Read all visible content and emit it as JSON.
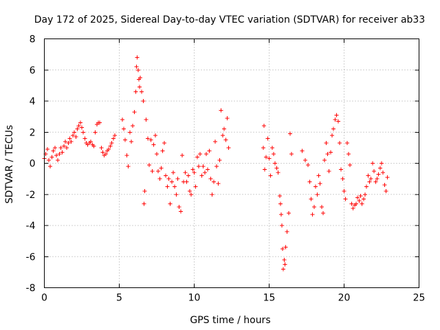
{
  "chart_data": {
    "type": "scatter",
    "title": "Day 172 of 2025, Sidereal Day-to-day VTEC variation (SDTVAR) for receiver ab33",
    "xlabel": "GPS time / hours",
    "ylabel": "SDTVAR / TECUs",
    "xlim": [
      0,
      25
    ],
    "ylim": [
      -8,
      8
    ],
    "x_ticks": [
      "0",
      "5",
      "10",
      "15",
      "20",
      "25"
    ],
    "y_ticks": [
      "-8",
      "-6",
      "-4",
      "-2",
      "0",
      "2",
      "4",
      "6",
      "8"
    ],
    "grid": true,
    "marker": "plus",
    "series_color": "#ff0000",
    "series": [
      {
        "name": "SDTVAR",
        "points": [
          [
            0.0,
            0.3
          ],
          [
            0.1,
            0.6
          ],
          [
            0.2,
            0.9
          ],
          [
            0.3,
            0.2
          ],
          [
            0.4,
            -0.2
          ],
          [
            0.5,
            0.4
          ],
          [
            0.6,
            0.8
          ],
          [
            0.7,
            1.0
          ],
          [
            0.8,
            0.5
          ],
          [
            0.9,
            0.2
          ],
          [
            1.0,
            0.6
          ],
          [
            1.1,
            1.0
          ],
          [
            1.2,
            0.7
          ],
          [
            1.3,
            1.1
          ],
          [
            1.4,
            1.4
          ],
          [
            1.5,
            1.0
          ],
          [
            1.6,
            1.3
          ],
          [
            1.7,
            1.6
          ],
          [
            1.8,
            1.4
          ],
          [
            1.9,
            1.8
          ],
          [
            2.0,
            2.0
          ],
          [
            2.1,
            1.7
          ],
          [
            2.2,
            2.2
          ],
          [
            2.3,
            2.4
          ],
          [
            2.4,
            2.6
          ],
          [
            2.5,
            2.3
          ],
          [
            2.6,
            2.0
          ],
          [
            2.7,
            1.6
          ],
          [
            2.8,
            1.3
          ],
          [
            2.9,
            1.2
          ],
          [
            3.0,
            1.3
          ],
          [
            3.1,
            1.4
          ],
          [
            3.2,
            1.2
          ],
          [
            3.3,
            1.1
          ],
          [
            3.4,
            2.0
          ],
          [
            3.5,
            2.5
          ],
          [
            3.6,
            2.6
          ],
          [
            3.7,
            2.6
          ],
          [
            3.8,
            1.0
          ],
          [
            3.9,
            0.7
          ],
          [
            4.0,
            0.5
          ],
          [
            4.1,
            0.6
          ],
          [
            4.2,
            0.8
          ],
          [
            4.3,
            0.9
          ],
          [
            4.4,
            1.1
          ],
          [
            4.5,
            1.3
          ],
          [
            4.6,
            1.6
          ],
          [
            4.7,
            1.8
          ],
          [
            5.2,
            2.8
          ],
          [
            5.3,
            2.2
          ],
          [
            5.4,
            1.5
          ],
          [
            5.5,
            0.5
          ],
          [
            5.6,
            -0.2
          ],
          [
            5.7,
            2.0
          ],
          [
            5.8,
            1.4
          ],
          [
            5.9,
            2.4
          ],
          [
            6.0,
            3.3
          ],
          [
            6.1,
            4.6
          ],
          [
            6.15,
            6.2
          ],
          [
            6.2,
            6.8
          ],
          [
            6.25,
            6.0
          ],
          [
            6.3,
            5.4
          ],
          [
            6.35,
            4.9
          ],
          [
            6.4,
            5.5
          ],
          [
            6.5,
            4.6
          ],
          [
            6.6,
            4.0
          ],
          [
            6.65,
            -2.6
          ],
          [
            6.7,
            -1.8
          ],
          [
            6.8,
            2.8
          ],
          [
            6.9,
            1.6
          ],
          [
            7.0,
            -0.1
          ],
          [
            7.1,
            1.5
          ],
          [
            7.2,
            -0.5
          ],
          [
            7.3,
            1.2
          ],
          [
            7.4,
            1.8
          ],
          [
            7.5,
            0.6
          ],
          [
            7.6,
            -0.5
          ],
          [
            7.7,
            -1.0
          ],
          [
            7.8,
            -0.3
          ],
          [
            7.9,
            0.8
          ],
          [
            8.0,
            1.3
          ],
          [
            8.1,
            -0.8
          ],
          [
            8.2,
            -1.5
          ],
          [
            8.3,
            -1.0
          ],
          [
            8.4,
            -2.6
          ],
          [
            8.5,
            -1.2
          ],
          [
            8.6,
            -0.6
          ],
          [
            8.7,
            -1.5
          ],
          [
            8.8,
            -2.0
          ],
          [
            8.9,
            -1.0
          ],
          [
            9.0,
            -2.8
          ],
          [
            9.1,
            -3.1
          ],
          [
            9.2,
            0.5
          ],
          [
            9.3,
            -1.2
          ],
          [
            9.4,
            -0.6
          ],
          [
            9.5,
            -1.2
          ],
          [
            9.6,
            -0.8
          ],
          [
            9.7,
            -1.8
          ],
          [
            9.8,
            -2.0
          ],
          [
            9.9,
            -0.4
          ],
          [
            10.0,
            -0.6
          ],
          [
            10.1,
            -1.5
          ],
          [
            10.2,
            0.4
          ],
          [
            10.3,
            -0.2
          ],
          [
            10.4,
            0.6
          ],
          [
            10.5,
            -0.8
          ],
          [
            10.6,
            -0.2
          ],
          [
            10.7,
            -0.6
          ],
          [
            10.8,
            0.6
          ],
          [
            10.9,
            -0.4
          ],
          [
            11.0,
            0.8
          ],
          [
            11.1,
            -1.0
          ],
          [
            11.2,
            -2.0
          ],
          [
            11.3,
            -1.2
          ],
          [
            11.4,
            1.4
          ],
          [
            11.5,
            -0.2
          ],
          [
            11.6,
            -1.3
          ],
          [
            11.7,
            0.2
          ],
          [
            11.8,
            3.4
          ],
          [
            11.9,
            1.8
          ],
          [
            12.0,
            2.2
          ],
          [
            12.1,
            1.5
          ],
          [
            12.2,
            2.9
          ],
          [
            12.3,
            1.0
          ],
          [
            14.6,
            1.0
          ],
          [
            14.65,
            2.4
          ],
          [
            14.7,
            -0.4
          ],
          [
            14.8,
            0.4
          ],
          [
            14.9,
            1.6
          ],
          [
            15.0,
            0.3
          ],
          [
            15.1,
            -0.8
          ],
          [
            15.2,
            1.0
          ],
          [
            15.3,
            0.6
          ],
          [
            15.4,
            0.0
          ],
          [
            15.5,
            -0.3
          ],
          [
            15.6,
            -0.6
          ],
          [
            15.7,
            -2.1
          ],
          [
            15.75,
            -2.6
          ],
          [
            15.8,
            -3.3
          ],
          [
            15.85,
            -4.0
          ],
          [
            15.9,
            -5.5
          ],
          [
            15.95,
            -6.8
          ],
          [
            16.0,
            -6.2
          ],
          [
            16.05,
            -6.5
          ],
          [
            16.1,
            -5.4
          ],
          [
            16.2,
            -4.4
          ],
          [
            16.3,
            -3.2
          ],
          [
            16.4,
            1.9
          ],
          [
            16.5,
            0.6
          ],
          [
            17.2,
            0.8
          ],
          [
            17.4,
            0.2
          ],
          [
            17.6,
            -0.1
          ],
          [
            17.7,
            -1.2
          ],
          [
            17.8,
            -2.3
          ],
          [
            17.9,
            -3.3
          ],
          [
            18.0,
            -2.8
          ],
          [
            18.1,
            -1.5
          ],
          [
            18.2,
            -2.0
          ],
          [
            18.3,
            -0.8
          ],
          [
            18.4,
            -1.3
          ],
          [
            18.5,
            -2.8
          ],
          [
            18.6,
            -3.2
          ],
          [
            18.7,
            0.2
          ],
          [
            18.8,
            1.3
          ],
          [
            18.9,
            0.6
          ],
          [
            19.0,
            -0.5
          ],
          [
            19.1,
            0.7
          ],
          [
            19.2,
            1.8
          ],
          [
            19.3,
            2.2
          ],
          [
            19.4,
            2.8
          ],
          [
            19.5,
            3.1
          ],
          [
            19.6,
            2.7
          ],
          [
            19.7,
            1.3
          ],
          [
            19.8,
            -0.4
          ],
          [
            19.9,
            -1.0
          ],
          [
            20.0,
            -1.8
          ],
          [
            20.1,
            -2.3
          ],
          [
            20.2,
            1.3
          ],
          [
            20.3,
            0.6
          ],
          [
            20.4,
            -0.1
          ],
          [
            20.5,
            -2.6
          ],
          [
            20.6,
            -2.9
          ],
          [
            20.7,
            -2.7
          ],
          [
            20.8,
            -2.6
          ],
          [
            20.9,
            -2.2
          ],
          [
            21.0,
            -2.4
          ],
          [
            21.1,
            -2.1
          ],
          [
            21.2,
            -2.6
          ],
          [
            21.3,
            -2.3
          ],
          [
            21.4,
            -2.0
          ],
          [
            21.5,
            -1.5
          ],
          [
            21.6,
            -0.8
          ],
          [
            21.7,
            -1.2
          ],
          [
            21.8,
            -1.0
          ],
          [
            21.9,
            0.0
          ],
          [
            22.0,
            -0.5
          ],
          [
            22.1,
            -1.2
          ],
          [
            22.2,
            -1.0
          ],
          [
            22.3,
            -0.7
          ],
          [
            22.4,
            -0.3
          ],
          [
            22.5,
            0.0
          ],
          [
            22.6,
            -0.6
          ],
          [
            22.7,
            -1.4
          ],
          [
            22.8,
            -1.8
          ],
          [
            22.9,
            -0.9
          ]
        ]
      }
    ]
  }
}
